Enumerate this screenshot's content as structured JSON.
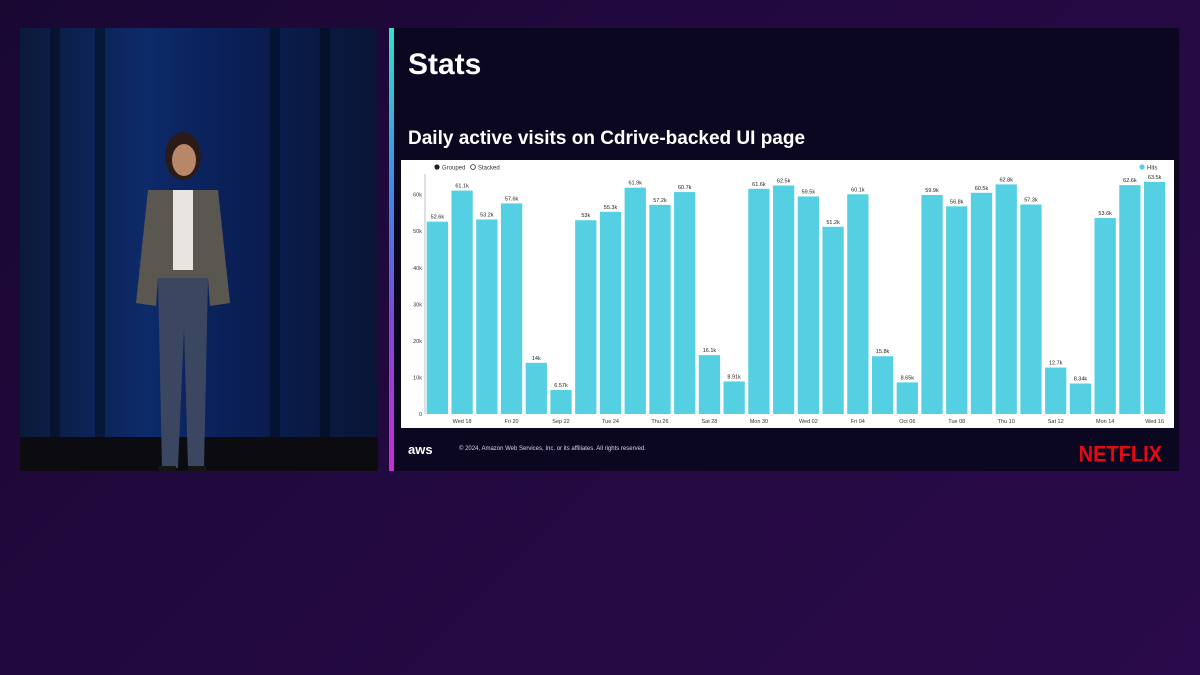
{
  "slide": {
    "title": "Stats",
    "subtitle": "Daily active visits on Cdrive-backed UI page",
    "footer_logo": "aws",
    "footer_text": "© 2024, Amazon Web Services, Inc. or its affiliates. All rights reserved.",
    "brand": "NETFLIX"
  },
  "colors": {
    "bar": "#55d0e3",
    "accent_top": "#37e0c8",
    "accent_bottom": "#c52fd0",
    "brand": "#e50914"
  },
  "chart_data": {
    "type": "bar",
    "toggle_options": [
      "Grouped",
      "Stacked"
    ],
    "toggle_selected": "Grouped",
    "legend": "top-right",
    "series": [
      {
        "name": "Hits",
        "values": [
          52600,
          61100,
          53200,
          57600,
          14000,
          6570,
          53000,
          55300,
          61900,
          57200,
          60700,
          16100,
          8910,
          61600,
          62500,
          59500,
          51200,
          60100,
          15800,
          8650,
          59900,
          56800,
          60500,
          62800,
          57300,
          12700,
          8340,
          53600,
          62600,
          63500
        ],
        "labels": [
          "52.6k",
          "61.1k",
          "53.2k",
          "57.6k",
          "14k",
          "6.57k",
          "53k",
          "55.3k",
          "61.9k",
          "57.2k",
          "60.7k",
          "16.1k",
          "8.91k",
          "61.6k",
          "62.5k",
          "59.5k",
          "51.2k",
          "60.1k",
          "15.8k",
          "8.65k",
          "59.9k",
          "56.8k",
          "60.5k",
          "62.8k",
          "57.3k",
          "12.7k",
          "8.34k",
          "53.6k",
          "62.6k",
          "63.5k"
        ]
      }
    ],
    "x_tick_labels": [
      {
        "index": 1,
        "label": "Wed 18"
      },
      {
        "index": 3,
        "label": "Fri 20"
      },
      {
        "index": 5,
        "label": "Sep 22"
      },
      {
        "index": 7,
        "label": "Tue 24"
      },
      {
        "index": 9,
        "label": "Thu 26"
      },
      {
        "index": 11,
        "label": "Sat 28"
      },
      {
        "index": 13,
        "label": "Mon 30"
      },
      {
        "index": 15,
        "label": "Wed 02"
      },
      {
        "index": 17,
        "label": "Fri 04"
      },
      {
        "index": 19,
        "label": "Oct 06"
      },
      {
        "index": 21,
        "label": "Tue 08"
      },
      {
        "index": 23,
        "label": "Thu 10"
      },
      {
        "index": 25,
        "label": "Sat 12"
      },
      {
        "index": 27,
        "label": "Mon 14"
      },
      {
        "index": 29,
        "label": "Wed 16"
      }
    ],
    "y_ticks": [
      0,
      10000,
      20000,
      30000,
      40000,
      50000,
      60000
    ],
    "y_tick_labels": [
      "0",
      "10k",
      "20k",
      "30k",
      "40k",
      "50k",
      "60k"
    ],
    "ylim": [
      0,
      64000
    ],
    "grid": false
  }
}
